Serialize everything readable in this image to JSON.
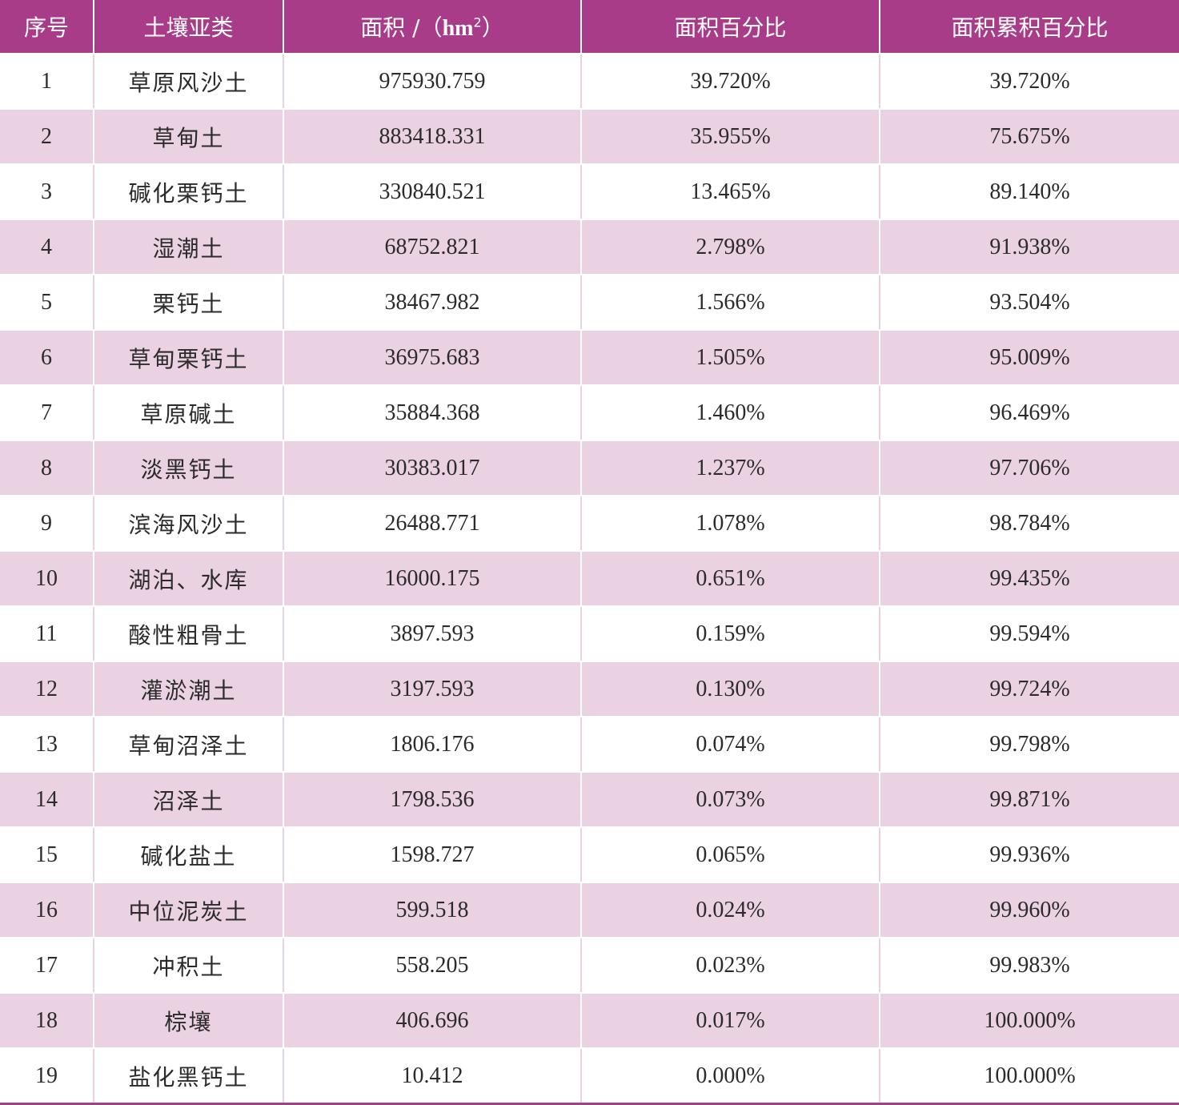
{
  "headers": {
    "index": "序号",
    "soil_subtype": "土壤亚类",
    "area_prefix": "面积 /（",
    "area_unit": "hm",
    "area_unit_sup": "2",
    "area_suffix": "）",
    "area_percent": "面积百分比",
    "cumulative_percent": "面积累积百分比"
  },
  "rows": [
    {
      "no": "1",
      "type": "草原风沙土",
      "area": "975930.759",
      "pct": "39.720%",
      "cum": "39.720%"
    },
    {
      "no": "2",
      "type": "草甸土",
      "area": "883418.331",
      "pct": "35.955%",
      "cum": "75.675%"
    },
    {
      "no": "3",
      "type": "碱化栗钙土",
      "area": "330840.521",
      "pct": "13.465%",
      "cum": "89.140%"
    },
    {
      "no": "4",
      "type": "湿潮土",
      "area": "68752.821",
      "pct": "2.798%",
      "cum": "91.938%"
    },
    {
      "no": "5",
      "type": "栗钙土",
      "area": "38467.982",
      "pct": "1.566%",
      "cum": "93.504%"
    },
    {
      "no": "6",
      "type": "草甸栗钙土",
      "area": "36975.683",
      "pct": "1.505%",
      "cum": "95.009%"
    },
    {
      "no": "7",
      "type": "草原碱土",
      "area": "35884.368",
      "pct": "1.460%",
      "cum": "96.469%"
    },
    {
      "no": "8",
      "type": "淡黑钙土",
      "area": "30383.017",
      "pct": "1.237%",
      "cum": "97.706%"
    },
    {
      "no": "9",
      "type": "滨海风沙土",
      "area": "26488.771",
      "pct": "1.078%",
      "cum": "98.784%"
    },
    {
      "no": "10",
      "type": "湖泊、水库",
      "area": "16000.175",
      "pct": "0.651%",
      "cum": "99.435%"
    },
    {
      "no": "11",
      "type": "酸性粗骨土",
      "area": "3897.593",
      "pct": "0.159%",
      "cum": "99.594%"
    },
    {
      "no": "12",
      "type": "灌淤潮土",
      "area": "3197.593",
      "pct": "0.130%",
      "cum": "99.724%"
    },
    {
      "no": "13",
      "type": "草甸沼泽土",
      "area": "1806.176",
      "pct": "0.074%",
      "cum": "99.798%"
    },
    {
      "no": "14",
      "type": "沼泽土",
      "area": "1798.536",
      "pct": "0.073%",
      "cum": "99.871%"
    },
    {
      "no": "15",
      "type": "碱化盐土",
      "area": "1598.727",
      "pct": "0.065%",
      "cum": "99.936%"
    },
    {
      "no": "16",
      "type": "中位泥炭土",
      "area": "599.518",
      "pct": "0.024%",
      "cum": "99.960%"
    },
    {
      "no": "17",
      "type": "冲积土",
      "area": "558.205",
      "pct": "0.023%",
      "cum": "99.983%"
    },
    {
      "no": "18",
      "type": "棕壤",
      "area": "406.696",
      "pct": "0.017%",
      "cum": "100.000%"
    },
    {
      "no": "19",
      "type": "盐化黑钙土",
      "area": "10.412",
      "pct": "0.000%",
      "cum": "100.000%"
    }
  ]
}
